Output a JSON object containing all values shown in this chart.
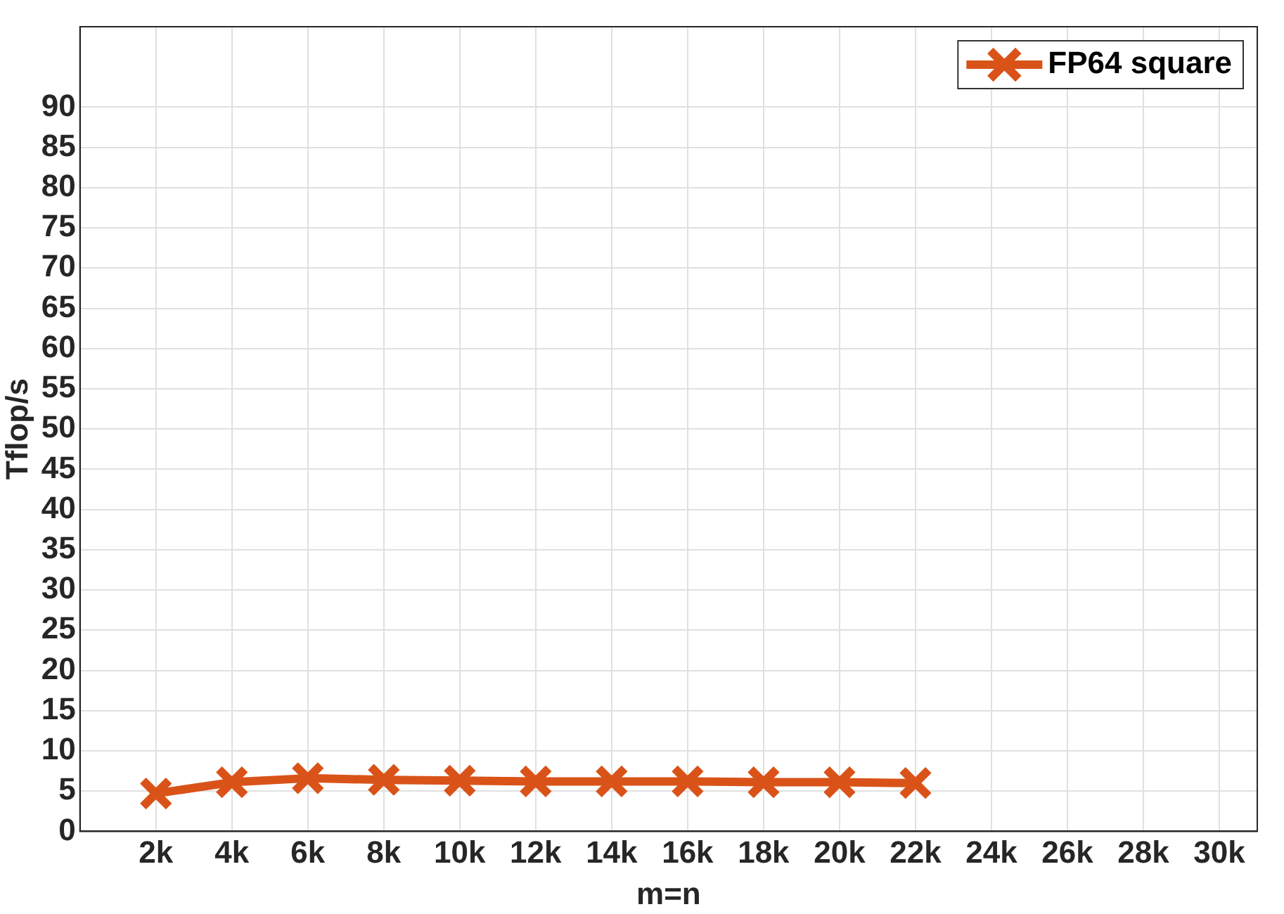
{
  "chart_data": {
    "type": "line",
    "xlabel": "m=n",
    "ylabel": "Tflop/s",
    "x": [
      2000,
      4000,
      6000,
      8000,
      10000,
      12000,
      14000,
      16000,
      18000,
      20000,
      22000
    ],
    "series": [
      {
        "name": "FP64 square",
        "color": "#d95319",
        "values": [
          4.7,
          6.1,
          6.6,
          6.4,
          6.3,
          6.2,
          6.2,
          6.2,
          6.1,
          6.1,
          6.0
        ]
      }
    ],
    "xlim": [
      0,
      31000
    ],
    "xticks": [
      {
        "value": 2000,
        "label": "2k"
      },
      {
        "value": 4000,
        "label": "4k"
      },
      {
        "value": 6000,
        "label": "6k"
      },
      {
        "value": 8000,
        "label": "8k"
      },
      {
        "value": 10000,
        "label": "10k"
      },
      {
        "value": 12000,
        "label": "12k"
      },
      {
        "value": 14000,
        "label": "14k"
      },
      {
        "value": 16000,
        "label": "16k"
      },
      {
        "value": 18000,
        "label": "18k"
      },
      {
        "value": 20000,
        "label": "20k"
      },
      {
        "value": 22000,
        "label": "22k"
      },
      {
        "value": 24000,
        "label": "24k"
      },
      {
        "value": 26000,
        "label": "26k"
      },
      {
        "value": 28000,
        "label": "28k"
      },
      {
        "value": 30000,
        "label": "30k"
      }
    ],
    "ylim": [
      0,
      100
    ],
    "yticks": [
      0,
      5,
      10,
      15,
      20,
      25,
      30,
      35,
      40,
      45,
      50,
      55,
      60,
      65,
      70,
      75,
      80,
      85,
      90
    ],
    "grid": true,
    "legend": "top right",
    "marker": "cross",
    "line_style": "solid"
  }
}
